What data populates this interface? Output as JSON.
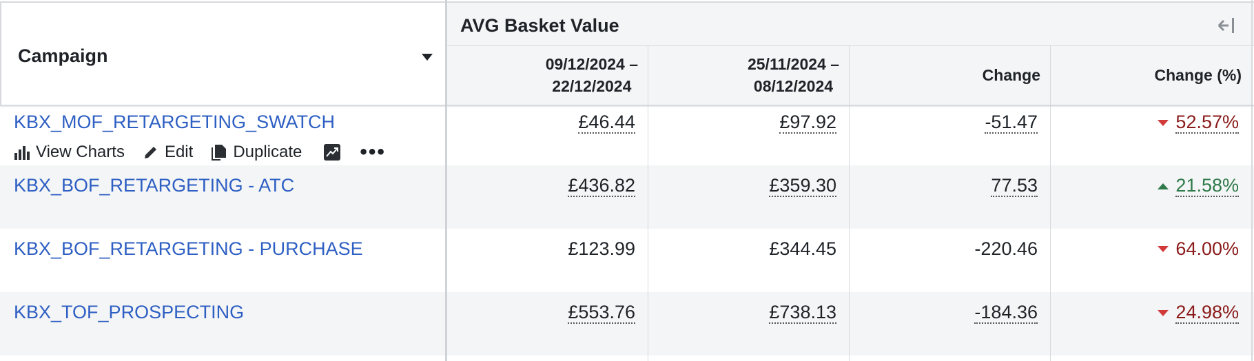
{
  "header": {
    "campaign_label": "Campaign",
    "group_label": "AVG Basket Value",
    "columns": [
      {
        "line1": "09/12/2024 –",
        "line2": "22/12/2024"
      },
      {
        "line1": "25/11/2024 –",
        "line2": "08/12/2024"
      },
      {
        "line1": "Change",
        "line2": ""
      },
      {
        "line1": "Change (%)",
        "line2": ""
      }
    ]
  },
  "actions": {
    "view_charts": "View Charts",
    "edit": "Edit",
    "duplicate": "Duplicate",
    "more": "•••"
  },
  "rows": [
    {
      "campaign": "KBX_MOF_RETARGETING_SWATCH",
      "current": "£46.44",
      "previous": "£97.92",
      "change": "-51.47",
      "change_pct": "52.57%",
      "direction": "down",
      "dotted": true
    },
    {
      "campaign": "KBX_BOF_RETARGETING - ATC",
      "current": "£436.82",
      "previous": "£359.30",
      "change": "77.53",
      "change_pct": "21.58%",
      "direction": "up",
      "dotted": true
    },
    {
      "campaign": "KBX_BOF_RETARGETING - PURCHASE",
      "current": "£123.99",
      "previous": "£344.45",
      "change": "-220.46",
      "change_pct": "64.00%",
      "direction": "down",
      "dotted": false
    },
    {
      "campaign": "KBX_TOF_PROSPECTING",
      "current": "£553.76",
      "previous": "£738.13",
      "change": "-184.36",
      "change_pct": "24.98%",
      "direction": "down",
      "dotted": true
    }
  ],
  "colors": {
    "link": "#2e5fc3",
    "negative": "#8b1a1a",
    "positive": "#2f7a4a",
    "negative_marker": "#d23a3a"
  }
}
